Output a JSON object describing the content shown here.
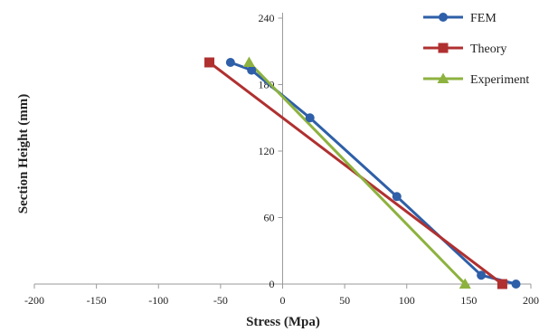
{
  "chart_data": {
    "type": "line",
    "title": "",
    "xlabel": "Stress (Mpa)",
    "ylabel": "Section Height (mm)",
    "xlim": [
      -200,
      200
    ],
    "ylim": [
      0,
      240
    ],
    "x_ticks": [
      -200,
      -150,
      -100,
      -50,
      0,
      50,
      100,
      150,
      200
    ],
    "y_ticks": [
      0,
      60,
      120,
      180,
      240
    ],
    "x_tick_labels": [
      "-200",
      "-150",
      "-100",
      "-50",
      "0",
      "50",
      "100",
      "150",
      "200"
    ],
    "y_tick_labels": [
      "0",
      "60",
      "120",
      "180",
      "240"
    ],
    "grid": false,
    "legend_position": "top-right",
    "series": [
      {
        "name": "FEM",
        "color": "#2e5fa8",
        "marker": "circle",
        "points": [
          [
            -42,
            200
          ],
          [
            -25,
            193
          ],
          [
            22,
            150
          ],
          [
            92,
            79
          ],
          [
            160,
            8
          ],
          [
            188,
            0
          ]
        ]
      },
      {
        "name": "Theory",
        "color": "#b03030",
        "marker": "square",
        "points": [
          [
            -59,
            200
          ],
          [
            177,
            0
          ]
        ]
      },
      {
        "name": "Experiment",
        "color": "#8db23f",
        "marker": "triangle",
        "points": [
          [
            -27,
            200
          ],
          [
            147,
            0
          ]
        ]
      }
    ]
  }
}
